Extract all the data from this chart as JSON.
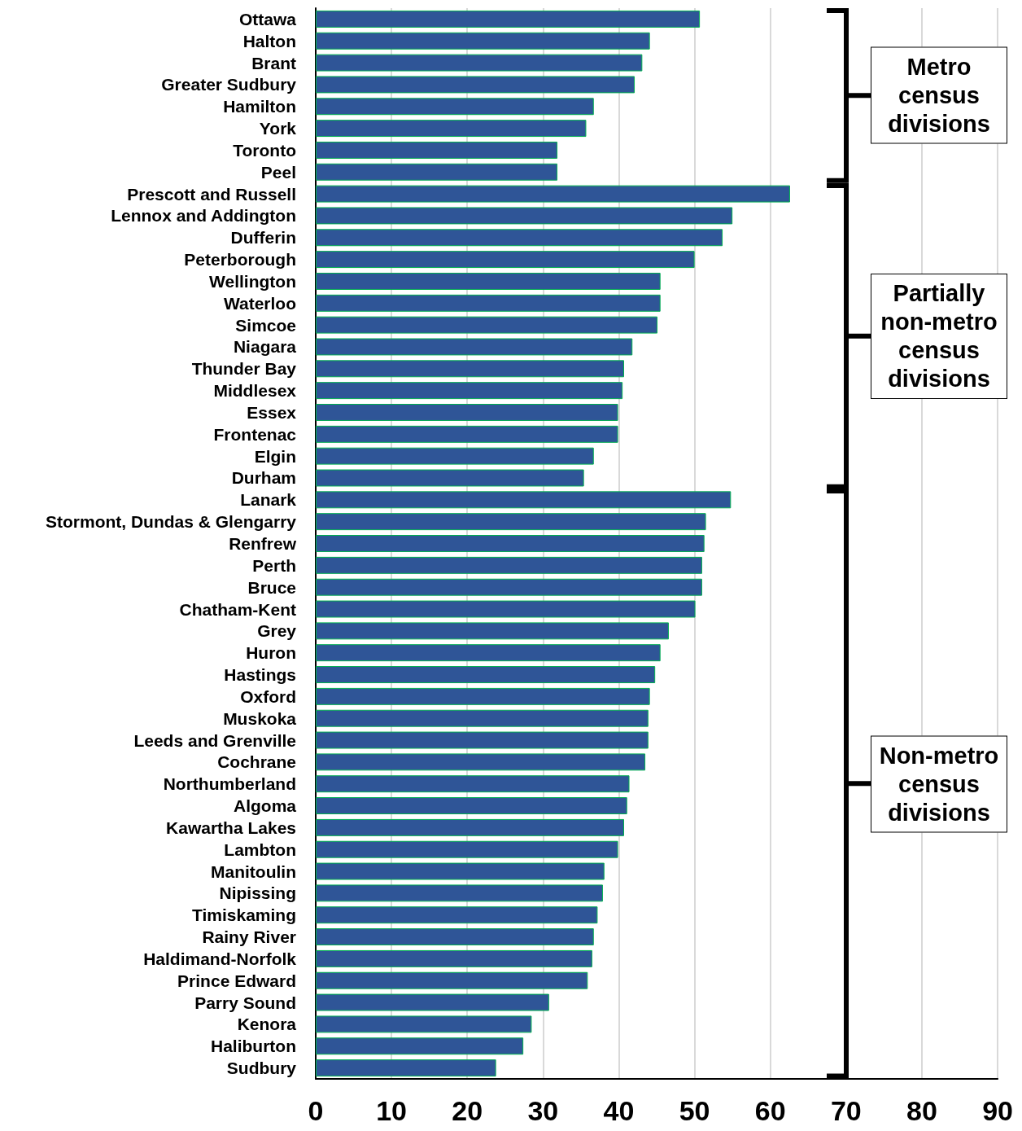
{
  "chart_data": {
    "type": "bar",
    "orientation": "horizontal",
    "categories": [
      "Ottawa",
      "Halton",
      "Brant",
      "Greater Sudbury",
      "Hamilton",
      "York",
      "Toronto",
      "Peel",
      "Prescott and Russell",
      "Lennox and Addington",
      "Dufferin",
      "Peterborough",
      "Wellington",
      "Waterloo",
      "Simcoe",
      "Niagara",
      "Thunder Bay",
      "Middlesex",
      "Essex",
      "Frontenac",
      "Elgin",
      "Durham",
      "Lanark",
      "Stormont, Dundas & Glengarry",
      "Renfrew",
      "Perth",
      "Bruce",
      "Chatham-Kent",
      "Grey",
      "Huron",
      "Hastings",
      "Oxford",
      "Muskoka",
      "Leeds and Grenville",
      "Cochrane",
      "Northumberland",
      "Algoma",
      "Kawartha Lakes",
      "Lambton",
      "Manitoulin",
      "Nipissing",
      "Timiskaming",
      "Rainy River",
      "Haldimand-Norfolk",
      "Prince Edward",
      "Parry Sound",
      "Kenora",
      "Haliburton",
      "Sudbury"
    ],
    "values": [
      50.7,
      44.1,
      43.1,
      42.1,
      36.7,
      35.7,
      31.9,
      31.9,
      62.6,
      55.0,
      53.7,
      50.0,
      45.5,
      45.5,
      45.1,
      41.8,
      40.7,
      40.5,
      39.9,
      39.9,
      36.7,
      35.4,
      54.8,
      51.5,
      51.3,
      51.0,
      51.0,
      50.1,
      46.6,
      45.5,
      44.8,
      44.1,
      43.9,
      43.9,
      43.5,
      41.4,
      41.1,
      40.7,
      39.9,
      38.1,
      37.9,
      37.2,
      36.7,
      36.5,
      35.9,
      30.8,
      28.5,
      27.4,
      23.8
    ],
    "color": "#2f5597",
    "xlim": [
      0,
      90
    ],
    "xticks": [
      0,
      10,
      20,
      30,
      40,
      50,
      60,
      70,
      80,
      90
    ],
    "grid": "x",
    "annotations": [
      "Metro census divisions",
      "Partially non-metro census divisions",
      "Non-metro census divisions"
    ]
  }
}
